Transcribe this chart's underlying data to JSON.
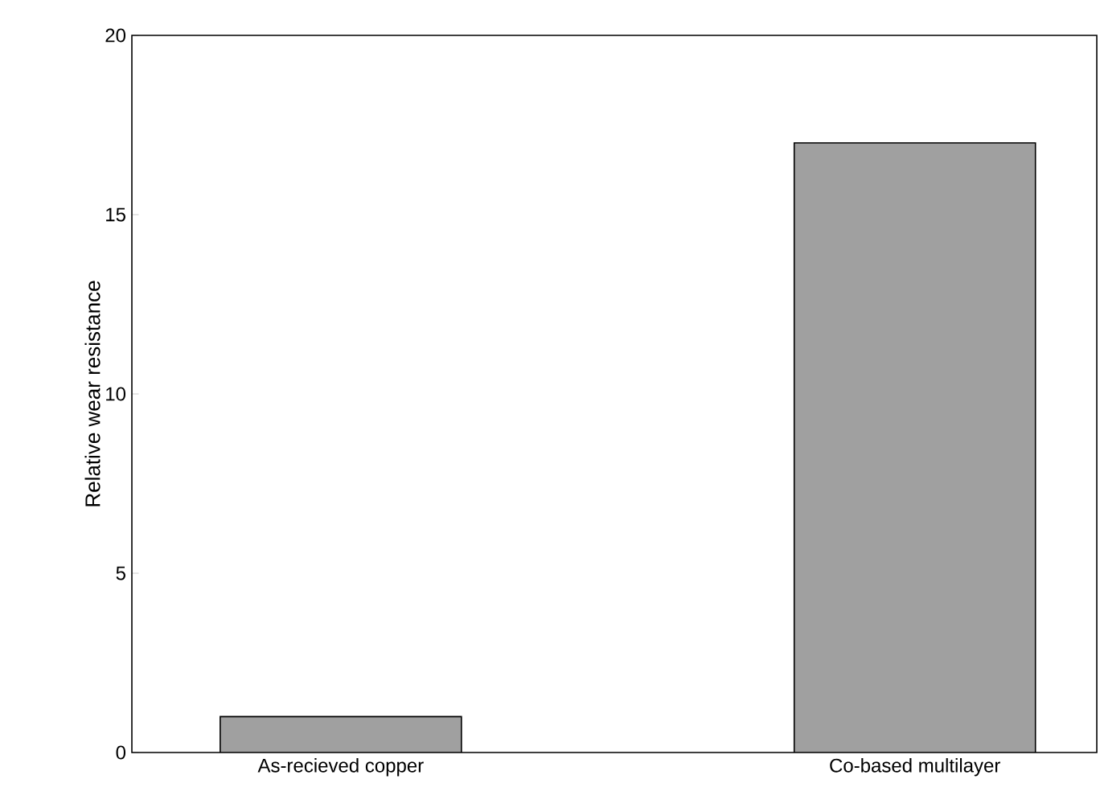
{
  "chart_data": {
    "type": "bar",
    "categories": [
      "As-recieved copper",
      "Co-based multilayer"
    ],
    "values": [
      1,
      17
    ],
    "color": "#a0a0a0",
    "ylabel": "Relative wear resistance",
    "ylim": [
      0,
      20
    ],
    "yticks": [
      0,
      5,
      10,
      15,
      20
    ],
    "grid": false
  }
}
